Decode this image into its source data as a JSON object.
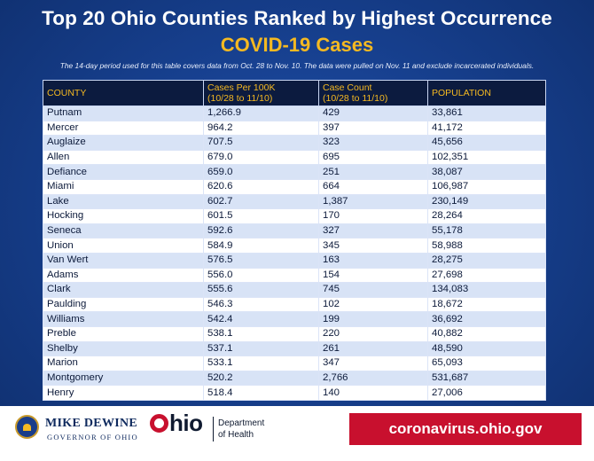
{
  "header": {
    "title": "Top 20 Ohio Counties Ranked by Highest Occurrence",
    "subtitle": "COVID-19 Cases",
    "note": "The 14-day period used for this table covers data from Oct. 28 to Nov. 10. The data were pulled on Nov. 11 and exclude incarcerated individuals."
  },
  "table": {
    "headers": [
      {
        "line1": "COUNTY",
        "line2": ""
      },
      {
        "line1": "Cases Per 100K",
        "line2": "(10/28 to 11/10)"
      },
      {
        "line1": "Case Count",
        "line2": "(10/28 to 11/10)"
      },
      {
        "line1": "POPULATION",
        "line2": ""
      }
    ],
    "rows": [
      [
        "Putnam",
        "1,266.9",
        "429",
        "33,861"
      ],
      [
        "Mercer",
        "964.2",
        "397",
        "41,172"
      ],
      [
        "Auglaize",
        "707.5",
        "323",
        "45,656"
      ],
      [
        "Allen",
        "679.0",
        "695",
        "102,351"
      ],
      [
        "Defiance",
        "659.0",
        "251",
        "38,087"
      ],
      [
        "Miami",
        "620.6",
        "664",
        "106,987"
      ],
      [
        "Lake",
        "602.7",
        "1,387",
        "230,149"
      ],
      [
        "Hocking",
        "601.5",
        "170",
        "28,264"
      ],
      [
        "Seneca",
        "592.6",
        "327",
        "55,178"
      ],
      [
        "Union",
        "584.9",
        "345",
        "58,988"
      ],
      [
        "Van Wert",
        "576.5",
        "163",
        "28,275"
      ],
      [
        "Adams",
        "556.0",
        "154",
        "27,698"
      ],
      [
        "Clark",
        "555.6",
        "745",
        "134,083"
      ],
      [
        "Paulding",
        "546.3",
        "102",
        "18,672"
      ],
      [
        "Williams",
        "542.4",
        "199",
        "36,692"
      ],
      [
        "Preble",
        "538.1",
        "220",
        "40,882"
      ],
      [
        "Shelby",
        "537.1",
        "261",
        "48,590"
      ],
      [
        "Marion",
        "533.1",
        "347",
        "65,093"
      ],
      [
        "Montgomery",
        "520.2",
        "2,766",
        "531,687"
      ],
      [
        "Henry",
        "518.4",
        "140",
        "27,006"
      ]
    ]
  },
  "footer": {
    "governor_name": "MIKE DEWINE",
    "governor_title": "GOVERNOR OF OHIO",
    "ohio_logo_text": "hio",
    "department_line1": "Department",
    "department_line2": "of Health",
    "website": "coronavirus.ohio.gov",
    "seal_icon": "ohio-state-seal-icon"
  },
  "colors": {
    "background": "#17408f",
    "accent_gold": "#f5b921",
    "header_row": "#0c1b3f",
    "band_row": "#d8e3f6",
    "brand_red": "#c8102e"
  }
}
